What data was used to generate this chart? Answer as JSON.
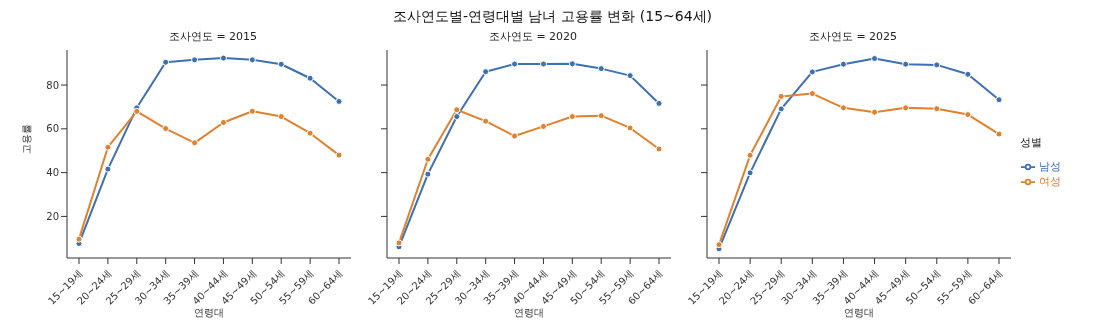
{
  "chart_data": [
    {
      "type": "line",
      "title": "조사연도 = 2015",
      "xlabel": "연령대",
      "ylabel": "고용률",
      "annotations": [
        "조사연도별-연령대별 남녀 고용률 변화 (15~64세)"
      ],
      "categories": [
        "15~19세",
        "20~24세",
        "25~29세",
        "30~34세",
        "35~39세",
        "40~44세",
        "45~49세",
        "50~54세",
        "55~59세",
        "60~64세"
      ],
      "ylim": [
        1,
        96
      ],
      "yticks": [
        20,
        40,
        60,
        80
      ],
      "marker": "circle",
      "grid": false,
      "legend": false,
      "series": [
        {
          "color": "#3e6fb0",
          "values": [
            7.6,
            41.6,
            69.6,
            90.4,
            91.5,
            92.3,
            91.5,
            89.5,
            83.1,
            72.5
          ]
        },
        {
          "color": "#e0812f",
          "values": [
            9.6,
            51.6,
            68,
            60.1,
            53.6,
            62.9,
            68,
            65.6,
            58,
            48
          ]
        }
      ]
    },
    {
      "type": "line",
      "title": "조사연도 = 2020",
      "xlabel": "연령대",
      "categories": [
        "15~19세",
        "20~24세",
        "25~29세",
        "30~34세",
        "35~39세",
        "40~44세",
        "45~49세",
        "50~54세",
        "55~59세",
        "60~64세"
      ],
      "ylim": [
        1,
        96
      ],
      "yticks": [
        20,
        40,
        60,
        80
      ],
      "tick_labels": "x",
      "marker": "circle",
      "grid": false,
      "legend": false,
      "series": [
        {
          "color": "#3e6fb0",
          "values": [
            6.1,
            39.3,
            65.6,
            86.1,
            89.6,
            89.6,
            89.7,
            87.5,
            84.3,
            71.6
          ]
        },
        {
          "color": "#e0812f",
          "values": [
            7.9,
            46.1,
            68.7,
            63.5,
            56.7,
            61.1,
            65.6,
            66,
            60.4,
            50.8
          ]
        }
      ]
    },
    {
      "type": "line",
      "title": "조사연도 = 2025",
      "xlabel": "연령대",
      "legend_title": "성별",
      "categories": [
        "15~19세",
        "20~24세",
        "25~29세",
        "30~34세",
        "35~39세",
        "40~44세",
        "45~49세",
        "50~54세",
        "55~59세",
        "60~64세"
      ],
      "ylim": [
        1,
        96
      ],
      "yticks": [
        20,
        40,
        60,
        80
      ],
      "tick_labels": "x",
      "marker": "circle",
      "grid": false,
      "legend": "right",
      "series": [
        {
          "name": "남성",
          "color": "#3e6fb0",
          "values": [
            5.2,
            39.9,
            69.1,
            86,
            89.5,
            92.1,
            89.5,
            89.2,
            84.9,
            73.3
          ]
        },
        {
          "name": "여성",
          "color": "#e0812f",
          "values": [
            7.1,
            47.9,
            74.8,
            76.1,
            69.6,
            67.6,
            69.6,
            69.2,
            66.5,
            57.6
          ]
        }
      ]
    }
  ]
}
